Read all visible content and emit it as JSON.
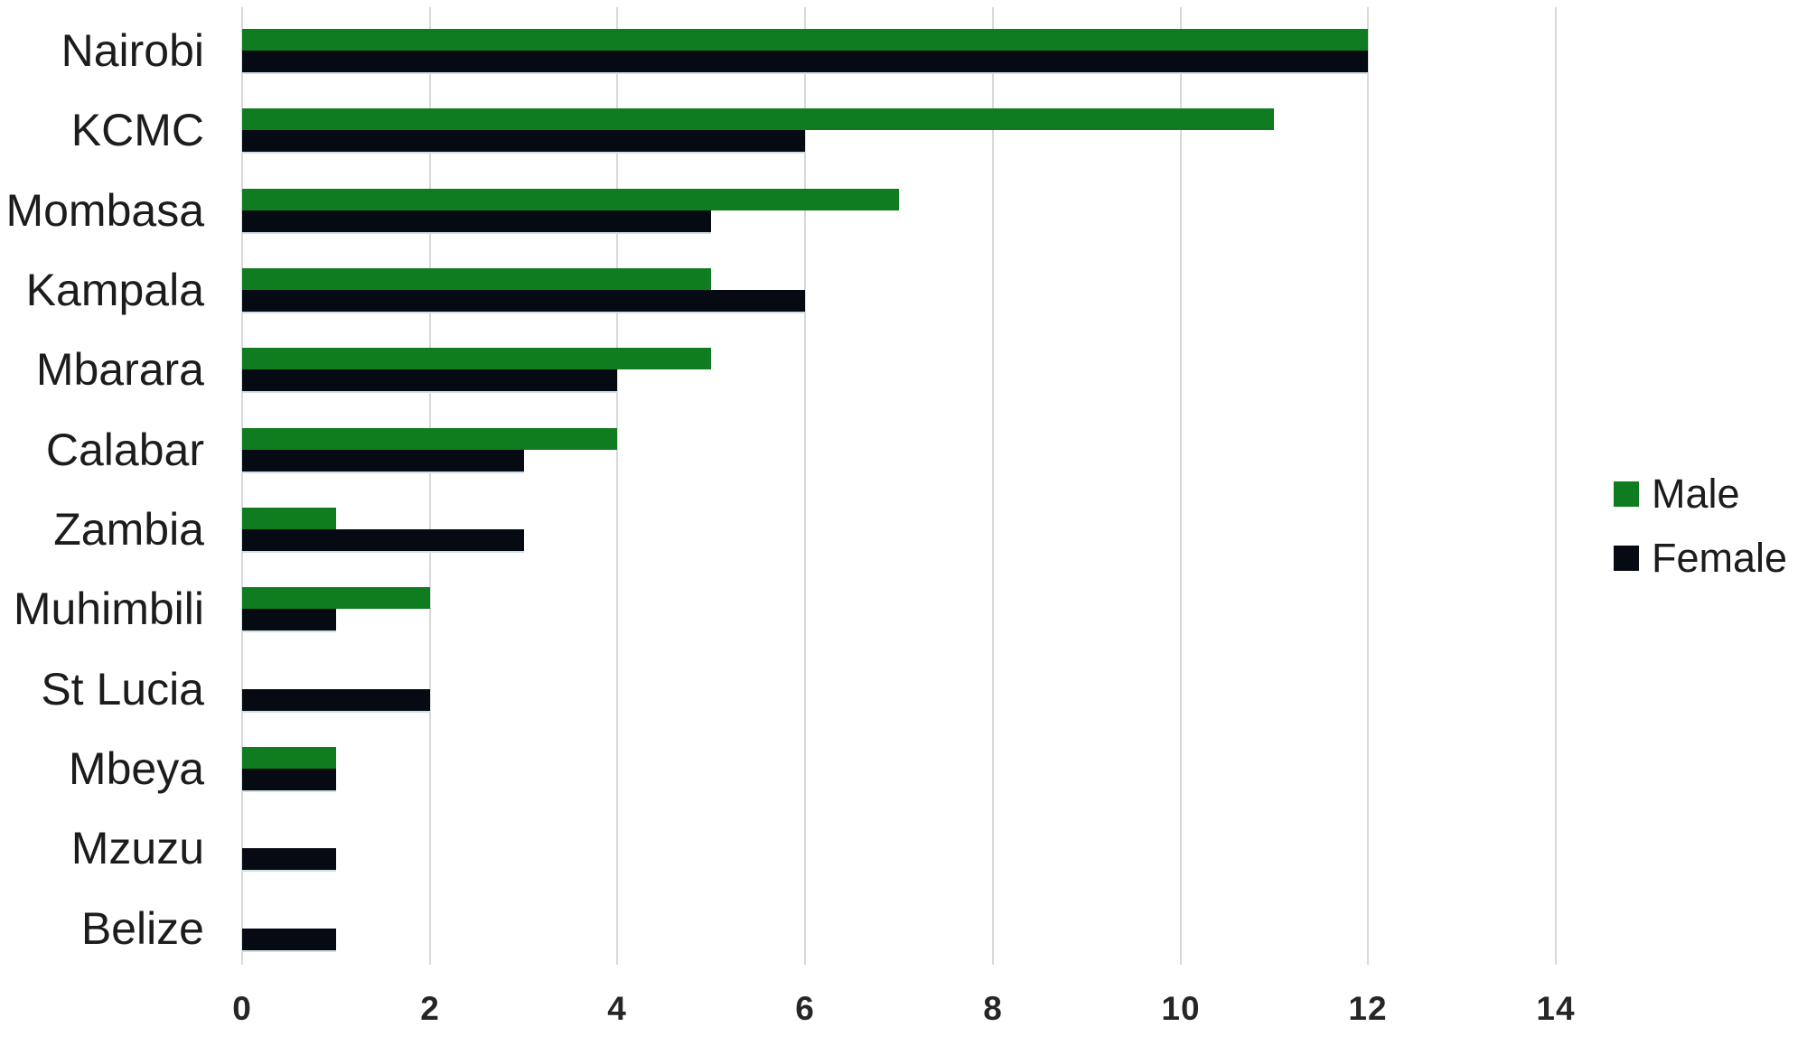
{
  "chart_data": {
    "type": "bar",
    "orientation": "horizontal",
    "title": "",
    "xlabel": "",
    "ylabel": "",
    "categories": [
      "Nairobi",
      "KCMC",
      "Mombasa",
      "Kampala",
      "Mbarara",
      "Calabar",
      "Zambia",
      "Muhimbili",
      "St Lucia",
      "Mbeya",
      "Mzuzu",
      "Belize"
    ],
    "series": [
      {
        "name": "Male",
        "color": "#0e7c1f",
        "values": [
          12,
          11,
          7,
          5,
          5,
          4,
          1,
          2,
          0,
          1,
          0,
          0
        ]
      },
      {
        "name": "Female",
        "color": "#050a13",
        "values": [
          12,
          6,
          5,
          6,
          4,
          3,
          3,
          1,
          2,
          1,
          1,
          1
        ]
      }
    ],
    "x_ticks": [
      0,
      2,
      4,
      6,
      8,
      10,
      12,
      14
    ],
    "xlim": [
      0,
      14
    ],
    "grid": "vertical",
    "gridline_color": "#d9d9d9",
    "background_color": "#ffffff",
    "label_color": "#1c1c1c",
    "tick_color": "#262626",
    "legend": {
      "position": "right-middle",
      "items": [
        "Male",
        "Female"
      ]
    }
  }
}
